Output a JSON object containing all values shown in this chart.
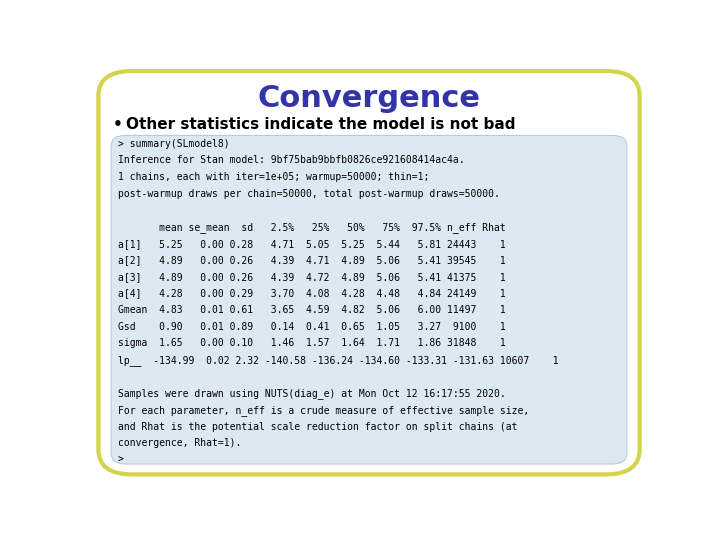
{
  "title": "Convergence",
  "title_color": "#3333aa",
  "title_fontsize": 22,
  "title_bold": true,
  "bullet_text": "Other statistics indicate the model is not bad",
  "bullet_fontsize": 11,
  "bullet_bold": true,
  "code_lines": [
    "> summary(SLmodel8)",
    "Inference for Stan model: 9bf75bab9bbfb0826ce921608414ac4a.",
    "1 chains, each with iter=1e+05; warmup=50000; thin=1;",
    "post-warmup draws per chain=50000, total post-warmup draws=50000.",
    "",
    "       mean se_mean  sd   2.5%   25%   50%   75%  97.5% n_eff Rhat",
    "a[1]   5.25   0.00 0.28   4.71  5.05  5.25  5.44   5.81 24443    1",
    "a[2]   4.89   0.00 0.26   4.39  4.71  4.89  5.06   5.41 39545    1",
    "a[3]   4.89   0.00 0.26   4.39  4.72  4.89  5.06   5.41 41375    1",
    "a[4]   4.28   0.00 0.29   3.70  4.08  4.28  4.48   4.84 24149    1",
    "Gmean  4.83   0.01 0.61   3.65  4.59  4.82  5.06   6.00 11497    1",
    "Gsd    0.90   0.01 0.89   0.14  0.41  0.65  1.05   3.27  9100    1",
    "sigma  1.65   0.00 0.10   1.46  1.57  1.64  1.71   1.86 31848    1",
    "lp__  -134.99  0.02 2.32 -140.58 -136.24 -134.60 -133.31 -131.63 10607    1",
    "",
    "Samples were drawn using NUTS(diag_e) at Mon Oct 12 16:17:55 2020.",
    "For each parameter, n_eff is a crude measure of effective sample size,",
    "and Rhat is the potential scale reduction factor on split chains (at",
    "convergence, Rhat=1).",
    ">"
  ],
  "code_fontsize": 7.0,
  "code_bg_color": "#dce8f2",
  "outer_bg_color": "#ffffff",
  "border_color": "#d4d44a",
  "border_linewidth": 3,
  "code_box_border_color": "#b8ccd8"
}
